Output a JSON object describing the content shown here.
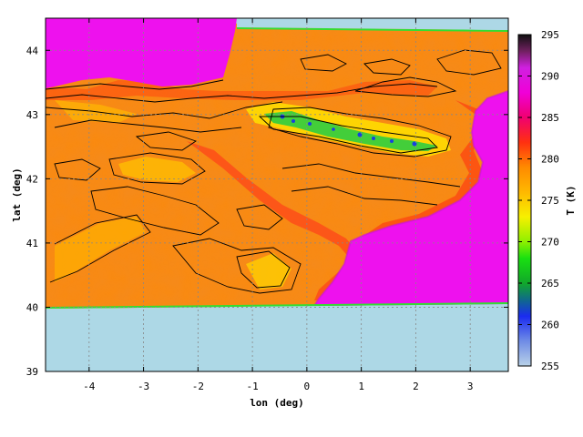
{
  "chart_data": {
    "type": "heatmap",
    "title": "",
    "xlabel": "lon (deg)",
    "ylabel": "lat (deg)",
    "xlim": [
      -4.8,
      3.7
    ],
    "ylim": [
      39.0,
      44.5
    ],
    "x_ticks": [
      -4,
      -3,
      -2,
      -1,
      0,
      1,
      2,
      3
    ],
    "y_ticks": [
      39,
      40,
      41,
      42,
      43,
      44
    ],
    "x_tick_labels": [
      "-4",
      "-3",
      "-2",
      "-1",
      "0",
      "1",
      "2",
      "3"
    ],
    "y_tick_labels": [
      "39",
      "40",
      "41",
      "42",
      "43",
      "44"
    ],
    "grid": true,
    "data_extent": {
      "lon": [
        -4.8,
        3.7
      ],
      "lat": [
        40.0,
        44.4
      ]
    },
    "colorbar": {
      "label": "T (K)",
      "range": [
        255,
        295
      ],
      "ticks": [
        255,
        260,
        265,
        270,
        275,
        280,
        285,
        290,
        295
      ],
      "tick_labels": [
        "255",
        "260",
        "265",
        "270",
        "275",
        "280",
        "285",
        "290",
        "295"
      ],
      "stops": [
        {
          "value": 255,
          "color": "#b9d2e8"
        },
        {
          "value": 258,
          "color": "#6f8ce6"
        },
        {
          "value": 261,
          "color": "#1a2bf0"
        },
        {
          "value": 263,
          "color": "#0f6a8a"
        },
        {
          "value": 265,
          "color": "#11a82a"
        },
        {
          "value": 268,
          "color": "#19e010"
        },
        {
          "value": 270,
          "color": "#8ff000"
        },
        {
          "value": 273,
          "color": "#f7f000"
        },
        {
          "value": 276,
          "color": "#ffb800"
        },
        {
          "value": 279,
          "color": "#ff8a00"
        },
        {
          "value": 282,
          "color": "#ff3010"
        },
        {
          "value": 285,
          "color": "#f00070"
        },
        {
          "value": 288,
          "color": "#f000d8"
        },
        {
          "value": 291,
          "color": "#d020e0"
        },
        {
          "value": 293,
          "color": "#702060"
        },
        {
          "value": 295,
          "color": "#101010"
        }
      ]
    },
    "colors": {
      "background_no_data": "#add8e6",
      "sea": "#ee11ee",
      "land_base": "#f58a1c",
      "mountains_cold": "#22bb55",
      "contour": "#000000"
    }
  }
}
